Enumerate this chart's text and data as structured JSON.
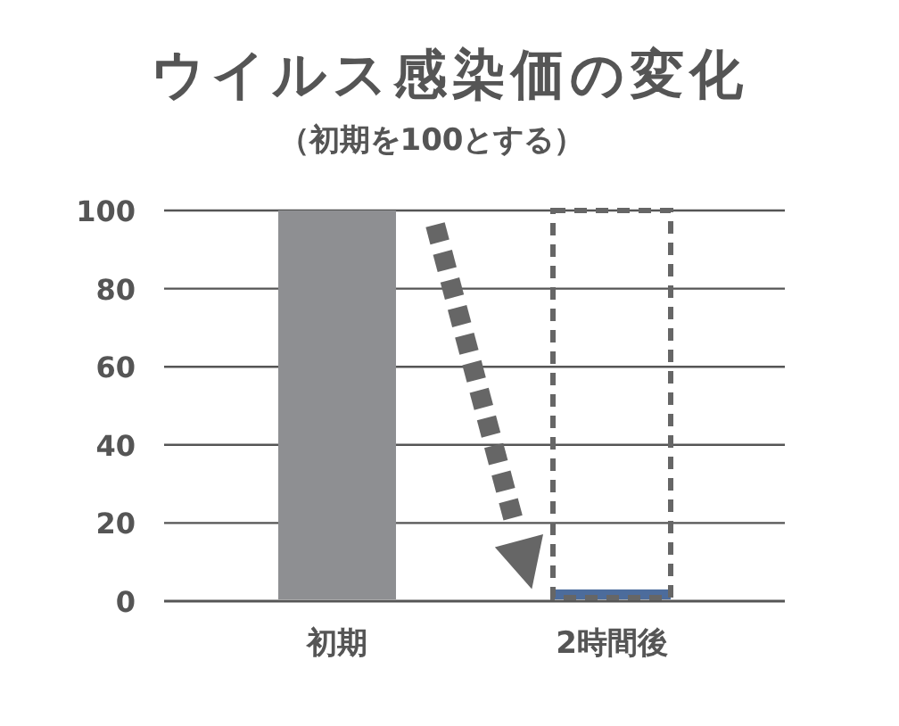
{
  "chart_data": {
    "type": "bar",
    "title": "ウイルス感染価の変化",
    "subtitle": "（初期を100とする）",
    "categories": [
      "初期",
      "2時間後"
    ],
    "values": [
      100,
      3
    ],
    "colors": [
      "#8e8f92",
      "#4c6c9c"
    ],
    "ylim": [
      0,
      100
    ],
    "yticks": [
      0,
      20,
      40,
      60,
      80,
      100
    ],
    "grid": "y"
  }
}
